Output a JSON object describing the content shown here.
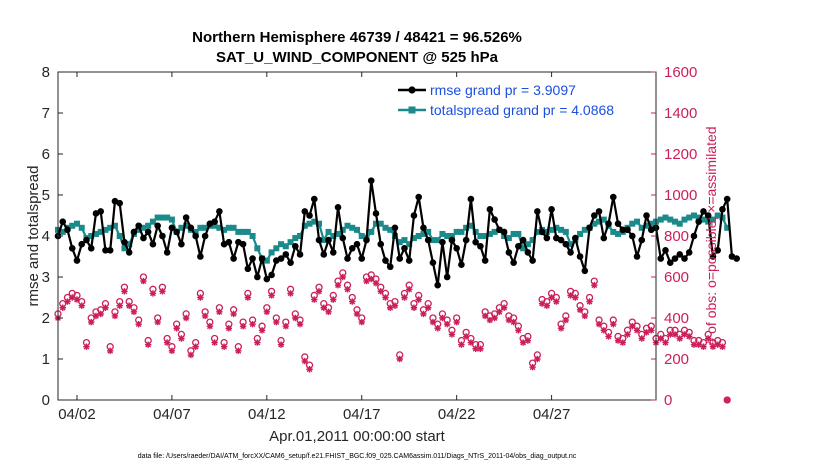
{
  "chart_data": {
    "type": "line",
    "title": "Northern Hemisphere 46739 / 48421 = 96.526%",
    "subtitle": "SAT_U_WIND_COMPONENT @ 525 hPa",
    "xlabel": "Apr.01,2011 00:00:00 start",
    "ylabel": "rmse and totalspread",
    "ylabel_right": "# of obs: o=possible; ×=assimilated",
    "xlim": [
      0,
      31.5
    ],
    "ylim": [
      0,
      8
    ],
    "ylim_right": [
      0,
      1600
    ],
    "x_ticks": [
      1,
      6,
      11,
      16,
      21,
      26
    ],
    "x_tick_labels": [
      "04/02",
      "04/07",
      "04/12",
      "04/17",
      "04/22",
      "04/27"
    ],
    "y_ticks": [
      "0",
      "1",
      "2",
      "3",
      "4",
      "5",
      "6",
      "7",
      "8"
    ],
    "y_ticks_right": [
      "0",
      "200",
      "400",
      "600",
      "800",
      "1000",
      "1200",
      "1400",
      "1600"
    ],
    "legend_position": "top-right",
    "grid": false,
    "footnote": "data file: /Users/raeder/DAI/ATM_forcXX/CAM6_setup/f.e21.FHIST_BGC.f09_025.CAM6assim.011/Diags_NTrS_2011-04/obs_diag_output.nc",
    "colors": {
      "rmse": "#000000",
      "spread": "#1a8a8a",
      "obs": "#cc1f5a",
      "legend_text": "#1a4fe0"
    },
    "series": [
      {
        "name": "rmse grand pr = 3.9097",
        "axis": "left",
        "values": [
          4.0,
          4.35,
          4.15,
          3.7,
          3.4,
          3.8,
          3.9,
          3.7,
          4.55,
          4.6,
          3.65,
          3.65,
          4.85,
          4.8,
          3.85,
          3.6,
          4.1,
          4.25,
          3.95,
          4.1,
          3.8,
          4.25,
          4.0,
          3.6,
          4.2,
          4.1,
          3.8,
          4.45,
          4.2,
          4.0,
          3.5,
          4.0,
          4.3,
          4.35,
          4.6,
          3.8,
          3.85,
          3.45,
          3.85,
          3.8,
          3.2,
          3.45,
          3.0,
          3.45,
          2.95,
          3.05,
          3.4,
          3.45,
          3.55,
          3.35,
          3.75,
          3.55,
          4.6,
          4.5,
          4.9,
          3.9,
          3.55,
          3.9,
          3.6,
          4.7,
          3.95,
          3.45,
          3.7,
          3.8,
          3.45,
          3.9,
          5.35,
          4.55,
          3.8,
          3.4,
          3.25,
          4.2,
          3.45,
          3.7,
          3.4,
          4.5,
          4.95,
          4.2,
          3.9,
          3.35,
          2.8,
          3.85,
          3.0,
          3.9,
          3.7,
          3.3,
          3.9,
          4.9,
          3.85,
          3.75,
          3.4,
          4.65,
          4.4,
          4.15,
          4.1,
          3.6,
          3.35,
          3.75,
          3.9,
          3.6,
          3.4,
          4.6,
          4.1,
          3.95,
          4.65,
          3.95,
          3.9,
          3.8,
          3.6,
          3.95,
          3.5,
          3.15,
          4.2,
          4.5,
          4.6,
          3.95,
          4.3,
          4.95,
          4.3,
          4.15,
          4.15,
          4.0,
          3.5,
          3.9,
          4.5,
          4.15,
          4.2,
          3.45,
          3.65,
          3.35,
          3.45,
          3.55,
          3.45,
          3.6,
          4.0,
          4.35,
          4.6,
          4.5,
          3.5,
          3.65,
          4.65,
          4.9,
          3.5,
          3.45
        ]
      },
      {
        "name": "totalspread grand pr = 4.0868",
        "axis": "left",
        "values": [
          4.15,
          4.1,
          4.2,
          4.25,
          4.3,
          4.2,
          3.95,
          4.0,
          4.05,
          4.1,
          4.15,
          4.2,
          4.25,
          4.0,
          3.7,
          3.8,
          4.05,
          4.15,
          4.2,
          4.25,
          4.35,
          4.45,
          4.45,
          4.45,
          4.4,
          4.1,
          4.2,
          4.25,
          4.15,
          4.1,
          4.2,
          4.2,
          4.25,
          4.25,
          4.2,
          4.15,
          4.2,
          4.2,
          4.1,
          4.1,
          4.1,
          4.0,
          3.7,
          3.45,
          3.4,
          3.6,
          3.7,
          3.8,
          3.75,
          3.85,
          3.95,
          4.0,
          4.25,
          4.3,
          4.35,
          4.3,
          3.9,
          4.1,
          4.0,
          4.05,
          4.15,
          4.25,
          4.2,
          4.15,
          4.0,
          3.95,
          4.1,
          4.3,
          4.3,
          4.2,
          4.15,
          4.0,
          3.85,
          3.9,
          3.8,
          3.95,
          4.0,
          4.05,
          4.1,
          3.9,
          3.9,
          4.05,
          4.0,
          4.0,
          4.1,
          4.1,
          4.2,
          4.25,
          4.1,
          4.0,
          4.0,
          4.05,
          4.1,
          4.15,
          4.0,
          3.95,
          4.05,
          4.05,
          3.7,
          3.8,
          3.9,
          4.1,
          4.15,
          4.1,
          4.15,
          4.2,
          4.15,
          4.1,
          3.8,
          3.9,
          4.05,
          4.15,
          4.2,
          4.3,
          4.35,
          4.4,
          4.25,
          4.1,
          4.05,
          4.1,
          4.2,
          4.3,
          4.35,
          4.2,
          4.25,
          4.3,
          4.35,
          4.4,
          4.45,
          4.4,
          4.35,
          4.3,
          4.4,
          4.45,
          4.5,
          4.45,
          4.4,
          4.35,
          4.4,
          4.5,
          4.45,
          4.2
        ]
      },
      {
        "name": "obs possible",
        "axis": "right",
        "marker": "circle",
        "values": [
          420,
          470,
          500,
          520,
          510,
          480,
          280,
          400,
          430,
          440,
          470,
          260,
          430,
          480,
          550,
          480,
          450,
          390,
          600,
          290,
          540,
          400,
          550,
          300,
          260,
          370,
          320,
          420,
          240,
          280,
          520,
          430,
          380,
          300,
          450,
          280,
          370,
          440,
          260,
          380,
          520,
          390,
          300,
          360,
          450,
          530,
          400,
          290,
          380,
          540,
          420,
          390,
          210,
          170,
          510,
          550,
          470,
          450,
          510,
          580,
          620,
          560,
          500,
          440,
          400,
          600,
          610,
          590,
          550,
          520,
          470,
          480,
          220,
          520,
          560,
          470,
          510,
          440,
          470,
          400,
          370,
          420,
          390,
          340,
          400,
          290,
          330,
          300,
          270,
          270,
          430,
          410,
          420,
          450,
          470,
          410,
          400,
          360,
          300,
          310,
          180,
          220,
          490,
          480,
          520,
          500,
          370,
          410,
          530,
          520,
          460,
          430,
          500,
          580,
          390,
          360,
          330,
          390,
          310,
          300,
          340,
          380,
          360,
          320,
          350,
          360,
          300,
          320,
          300,
          340,
          340,
          320,
          340,
          330,
          290,
          290,
          280,
          320,
          280,
          290,
          280,
          0
        ]
      },
      {
        "name": "obs assimilated",
        "axis": "right",
        "marker": "asterisk",
        "values": [
          400,
          450,
          480,
          500,
          490,
          460,
          260,
          380,
          410,
          420,
          450,
          240,
          410,
          460,
          530,
          460,
          430,
          370,
          580,
          270,
          520,
          380,
          530,
          280,
          240,
          350,
          300,
          400,
          220,
          260,
          500,
          410,
          360,
          280,
          430,
          260,
          350,
          420,
          240,
          360,
          500,
          370,
          280,
          340,
          430,
          510,
          380,
          270,
          360,
          520,
          400,
          370,
          190,
          150,
          490,
          530,
          450,
          430,
          490,
          560,
          600,
          540,
          480,
          420,
          380,
          580,
          590,
          570,
          530,
          500,
          450,
          460,
          200,
          500,
          540,
          450,
          490,
          420,
          450,
          380,
          350,
          400,
          370,
          320,
          380,
          270,
          310,
          280,
          250,
          250,
          410,
          390,
          400,
          430,
          450,
          390,
          380,
          340,
          280,
          290,
          160,
          200,
          470,
          460,
          500,
          480,
          350,
          390,
          510,
          500,
          440,
          410,
          480,
          560,
          370,
          340,
          310,
          370,
          290,
          280,
          320,
          360,
          340,
          300,
          330,
          340,
          280,
          300,
          280,
          320,
          320,
          300,
          320,
          310,
          270,
          270,
          260,
          300,
          260,
          270,
          260,
          0
        ]
      }
    ]
  }
}
